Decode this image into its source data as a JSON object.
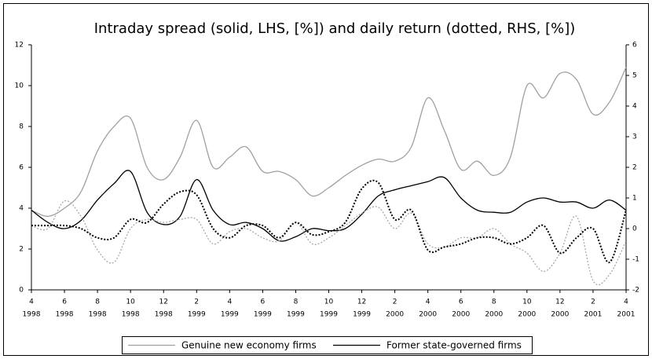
{
  "chart_data": {
    "type": "line",
    "title": "Intraday spread (solid, LHS, [%]) and daily return (dotted, RHS, [%])",
    "x": [
      "1998-04",
      "1998-05",
      "1998-06",
      "1998-07",
      "1998-08",
      "1998-09",
      "1998-10",
      "1998-11",
      "1998-12",
      "1999-01",
      "1999-02",
      "1999-03",
      "1999-04",
      "1999-05",
      "1999-06",
      "1999-07",
      "1999-08",
      "1999-09",
      "1999-10",
      "1999-11",
      "1999-12",
      "2000-01",
      "2000-02",
      "2000-03",
      "2000-04",
      "2000-05",
      "2000-06",
      "2000-07",
      "2000-08",
      "2000-09",
      "2000-10",
      "2000-11",
      "2000-12",
      "2001-01",
      "2001-02",
      "2001-03",
      "2001-04"
    ],
    "xlim": [
      "1998-04",
      "2001-04"
    ],
    "xticks": [
      {
        "value": "1998-04",
        "label": [
          "4",
          "1998"
        ]
      },
      {
        "value": "1998-06",
        "label": [
          "6",
          "1998"
        ]
      },
      {
        "value": "1998-08",
        "label": [
          "8",
          "1998"
        ]
      },
      {
        "value": "1998-10",
        "label": [
          "10",
          "1998"
        ]
      },
      {
        "value": "1998-12",
        "label": [
          "12",
          "1998"
        ]
      },
      {
        "value": "1999-02",
        "label": [
          "2",
          "1999"
        ]
      },
      {
        "value": "1999-04",
        "label": [
          "4",
          "1999"
        ]
      },
      {
        "value": "1999-06",
        "label": [
          "6",
          "1999"
        ]
      },
      {
        "value": "1999-08",
        "label": [
          "8",
          "1999"
        ]
      },
      {
        "value": "1999-10",
        "label": [
          "10",
          "1999"
        ]
      },
      {
        "value": "1999-12",
        "label": [
          "12",
          "1999"
        ]
      },
      {
        "value": "2000-02",
        "label": [
          "2",
          "2000"
        ]
      },
      {
        "value": "2000-04",
        "label": [
          "4",
          "2000"
        ]
      },
      {
        "value": "2000-06",
        "label": [
          "6",
          "2000"
        ]
      },
      {
        "value": "2000-08",
        "label": [
          "8",
          "2000"
        ]
      },
      {
        "value": "2000-10",
        "label": [
          "10",
          "2000"
        ]
      },
      {
        "value": "2000-12",
        "label": [
          "12",
          "2000"
        ]
      },
      {
        "value": "2001-02",
        "label": [
          "2",
          "2001"
        ]
      },
      {
        "value": "2001-04",
        "label": [
          "4",
          "2001"
        ]
      }
    ],
    "ylim": [
      0,
      12
    ],
    "yticks": [
      0,
      2,
      4,
      6,
      8,
      10,
      12
    ],
    "y2lim": [
      -2,
      6
    ],
    "y2ticks": [
      -2,
      -1,
      0,
      1,
      2,
      3,
      4,
      5,
      6
    ],
    "series": [
      {
        "name": "Genuine new economy firms",
        "color": "#a0a0a0",
        "values": [
          3.9,
          3.6,
          4.0,
          4.8,
          6.8,
          8.0,
          8.4,
          6.0,
          5.4,
          6.5,
          8.3,
          6.0,
          6.5,
          7.0,
          5.8,
          5.8,
          5.4,
          4.6,
          5.0,
          5.6,
          6.1,
          6.4,
          6.3,
          7.0,
          9.4,
          7.8,
          5.9,
          6.3,
          5.6,
          6.5,
          10.0,
          9.4,
          10.6,
          10.3,
          8.6,
          9.2,
          10.9
        ]
      },
      {
        "name": "Former state-governed firms",
        "color": "#000000",
        "values": [
          3.9,
          3.3,
          3.0,
          3.4,
          4.4,
          5.2,
          5.8,
          3.8,
          3.2,
          3.6,
          5.4,
          3.9,
          3.2,
          3.3,
          3.0,
          2.4,
          2.6,
          3.0,
          2.9,
          3.0,
          3.7,
          4.6,
          4.9,
          5.1,
          5.3,
          5.5,
          4.5,
          3.9,
          3.8,
          3.8,
          4.3,
          4.5,
          4.3,
          4.3,
          4.0,
          4.4,
          3.9
        ]
      },
      {
        "color": "#a8a8a8",
        "axis": "y2",
        "dash": true,
        "values": [
          0.1,
          0.0,
          0.9,
          0.4,
          -0.7,
          -1.1,
          0.0,
          0.3,
          0.2,
          0.3,
          0.3,
          -0.5,
          -0.1,
          0.0,
          -0.3,
          -0.4,
          0.2,
          -0.5,
          -0.3,
          0.1,
          0.5,
          0.7,
          0.0,
          0.5,
          -0.5,
          -0.6,
          -0.3,
          -0.3,
          0.0,
          -0.5,
          -0.8,
          -1.4,
          -0.8,
          0.4,
          -1.7,
          -1.5,
          -0.4
        ]
      },
      {
        "color": "#000000",
        "axis": "y2",
        "dash": true,
        "values": [
          0.1,
          0.1,
          0.1,
          0.0,
          -0.3,
          -0.3,
          0.3,
          0.2,
          0.8,
          1.2,
          1.1,
          0.0,
          -0.3,
          0.1,
          0.1,
          -0.3,
          0.2,
          -0.2,
          -0.1,
          0.2,
          1.3,
          1.5,
          0.3,
          0.6,
          -0.7,
          -0.6,
          -0.5,
          -0.3,
          -0.3,
          -0.5,
          -0.3,
          0.1,
          -0.8,
          -0.3,
          0.0,
          -1.1,
          0.6
        ]
      }
    ]
  }
}
